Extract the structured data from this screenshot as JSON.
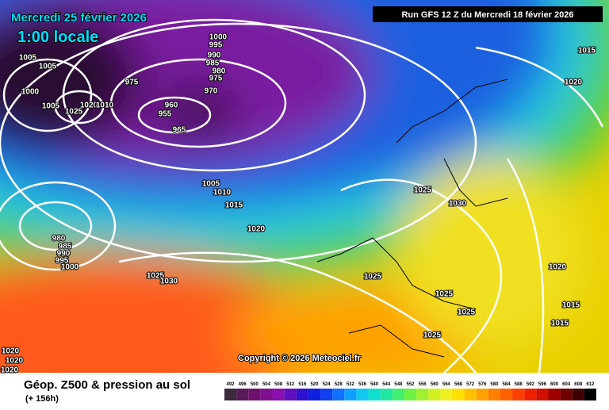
{
  "header": {
    "date": "Mercredi 25 février 2026",
    "time": "1:00 locale",
    "run": "Run GFS 12 Z du Mercredi 18 février 2026"
  },
  "footer": {
    "title": "Géop. Z500 & pression au sol",
    "lead": "(+ 156h)",
    "copyright": "Copyright © 2026 Meteociel.fr"
  },
  "legend": {
    "values": [
      492,
      496,
      500,
      504,
      508,
      512,
      516,
      520,
      524,
      528,
      532,
      536,
      540,
      544,
      548,
      552,
      556,
      560,
      564,
      568,
      572,
      576,
      580,
      584,
      588,
      592,
      596,
      600,
      604,
      608,
      612
    ],
    "colors": [
      "#3a2a3a",
      "#5a1a5a",
      "#70106e",
      "#7e1090",
      "#8a10b0",
      "#6010c0",
      "#3010d0",
      "#1020e0",
      "#1040f0",
      "#1070ff",
      "#10a0ff",
      "#10c8f0",
      "#10e0d0",
      "#20e8a0",
      "#40f070",
      "#70f040",
      "#a0f030",
      "#d0f020",
      "#f0f020",
      "#ffe000",
      "#ffc000",
      "#ffa000",
      "#ff8000",
      "#ff6000",
      "#ff4000",
      "#f02000",
      "#d01000",
      "#a00000",
      "#700000",
      "#400000",
      "#000000"
    ]
  },
  "isobars": [
    1005,
    1005,
    1000,
    1005,
    1025,
    1020,
    1010,
    975,
    1000,
    995,
    990,
    985,
    980,
    975,
    970,
    960,
    955,
    965,
    1005,
    1010,
    1015,
    1020,
    980,
    985,
    990,
    995,
    1000,
    1025,
    1030,
    1025,
    1030,
    1025,
    1025,
    1025,
    1025,
    1020,
    1015,
    1015,
    1020,
    1015,
    1020,
    1020,
    1020
  ]
}
